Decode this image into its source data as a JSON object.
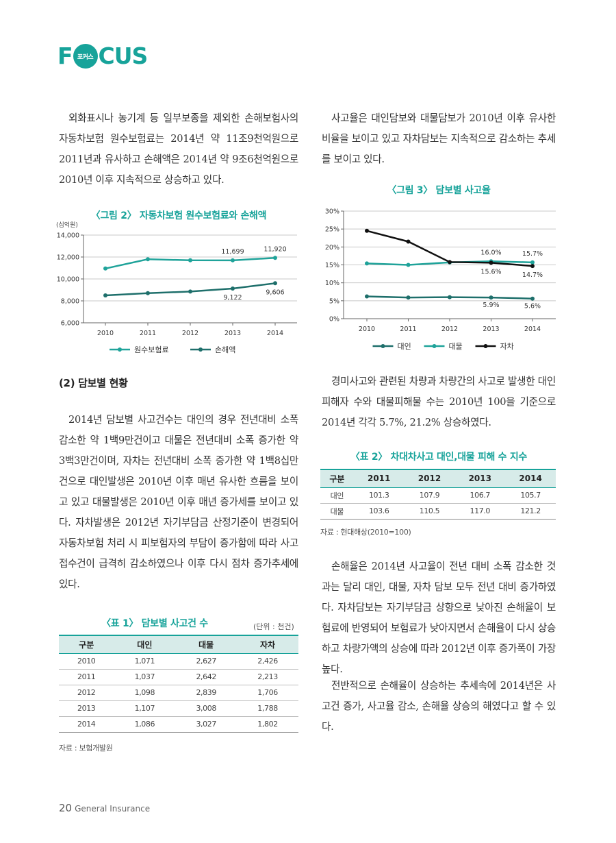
{
  "header": {
    "logo_left": "F",
    "logo_inner": "포커스",
    "logo_right": "CUS",
    "brand_color": "#17a39a"
  },
  "left": {
    "para1": "외화표시나 농기계 등 일부보종을 제외한 손해보험사의 자동차보험 원수보험료는 2014년 약 11조9천억원으로 2011년과 유사하고 손해액은 2014년 약 9조6천억원으로 2010년 이후 지속적으로 상승하고 있다.",
    "section_heading": "(2) 담보별 현황",
    "para2": "2014년 담보별 사고건수는 대인의 경우 전년대비 소폭 감소한 약 1백9만건이고 대물은 전년대비 소폭 증가한 약 3백3만건이며, 자차는 전년대비 소폭 증가한 약 1백8십만건으로 대인발생은 2010년 이후 매년 유사한 흐름을 보이고 있고 대물발생은 2010년 이후 매년 증가세를 보이고 있다. 자차발생은 2012년 자기부담금 산정기준이 변경되어 자동차보험 처리 시 피보험자의 부담이 증가함에 따라 사고접수건이 급격히 감소하였으나 이후 다시 점차 증가추세에 있다."
  },
  "right": {
    "para1": "사고율은 대인담보와 대물담보가 2010년 이후 유사한 비율을 보이고 있고 자차담보는 지속적으로 감소하는 추세를 보이고 있다.",
    "para2": "경미사고와 관련된 차량과 차량간의 사고로 발생한 대인피해자 수와 대물피해물 수는 2010년 100을 기준으로 2014년 각각 5.7%, 21.2% 상승하였다.",
    "para3": "손해율은 2014년 사고율이 전년 대비 소폭 감소한 것과는 달리 대인, 대물, 자차 담보 모두 전년 대비 증가하였다. 자차담보는 자기부담금 상향으로 낮아진 손해율이 보험료에 반영되어 보험료가 낮아지면서 손해율이 다시 상승하고 차량가액의 상승에 따라 2012년 이후 증가폭이 가장 높다.",
    "para4": "전반적으로 손해율이 상승하는 추세속에 2014년은 사고건 증가, 사고율 감소, 손해율 상승의 해였다고 할 수 있다."
  },
  "chart_data": [
    {
      "type": "line",
      "title": "〈그림 2〉 자동차보험 원수보험료와 손해액",
      "ylabel": "(십억원)",
      "x": [
        "2010",
        "2011",
        "2012",
        "2013",
        "2014"
      ],
      "ylim": [
        6000,
        14000
      ],
      "yticks": [
        "6,000",
        "8,000",
        "10,000",
        "12,000",
        "14,000"
      ],
      "yticks_values": [
        6000,
        8000,
        10000,
        12000,
        14000
      ],
      "grid": true,
      "legend": "bottom",
      "series": [
        {
          "name": "원수보험료",
          "values": [
            10950,
            11800,
            11700,
            11699,
            11920
          ],
          "color": "#1fa39a",
          "labels": [
            "",
            "",
            "",
            "11,699",
            "11,920"
          ]
        },
        {
          "name": "손해액",
          "values": [
            8500,
            8700,
            8850,
            9122,
            9606
          ],
          "color": "#1e6f6b",
          "labels": [
            "",
            "",
            "",
            "9,122",
            "9,606"
          ]
        }
      ]
    },
    {
      "type": "line",
      "title": "〈그림 3〉 담보별 사고율",
      "x": [
        "2010",
        "2011",
        "2012",
        "2013",
        "2014"
      ],
      "ylim": [
        0,
        30
      ],
      "yticks": [
        "0%",
        "5%",
        "10%",
        "15%",
        "20%",
        "25%",
        "30%"
      ],
      "yticks_values": [
        0,
        5,
        10,
        15,
        20,
        25,
        30
      ],
      "grid": true,
      "legend": "bottom",
      "series": [
        {
          "name": "대인",
          "values": [
            6.2,
            5.9,
            6.0,
            5.9,
            5.6
          ],
          "color": "#1e6f6b",
          "labels": [
            "",
            "",
            "",
            "5.9%",
            "5.6%"
          ]
        },
        {
          "name": "대물",
          "values": [
            15.4,
            15.0,
            15.7,
            16.0,
            15.7
          ],
          "color": "#1fa39a",
          "labels": [
            "",
            "",
            "",
            "16.0%",
            "15.7%"
          ]
        },
        {
          "name": "자차",
          "values": [
            24.5,
            21.5,
            15.8,
            15.6,
            14.7
          ],
          "color": "#111111",
          "labels": [
            "",
            "",
            "",
            "15.6%",
            "14.7%"
          ]
        }
      ]
    },
    {
      "type": "table",
      "title": "〈표 1〉 담보별 사고건 수",
      "unit": "(단위 : 천건)",
      "headers": [
        "구분",
        "대인",
        "대물",
        "자차"
      ],
      "rows": [
        [
          "2010",
          "1,071",
          "2,627",
          "2,426"
        ],
        [
          "2011",
          "1,037",
          "2,642",
          "2,213"
        ],
        [
          "2012",
          "1,098",
          "2,839",
          "1,706"
        ],
        [
          "2013",
          "1,107",
          "3,008",
          "1,788"
        ],
        [
          "2014",
          "1,086",
          "3,027",
          "1,802"
        ]
      ],
      "source": "자료 : 보험개발원"
    },
    {
      "type": "table",
      "title": "〈표 2〉 차대차사고 대인,대물 피해 수 지수",
      "headers": [
        "구분",
        "2011",
        "2012",
        "2013",
        "2014"
      ],
      "rows": [
        [
          "대인",
          "101.3",
          "107.9",
          "106.7",
          "105.7"
        ],
        [
          "대물",
          "103.6",
          "110.5",
          "117.0",
          "121.2"
        ]
      ],
      "source": "자료 : 현대해상(2010=100)"
    }
  ],
  "footer": {
    "page_number": "20",
    "publication": "General Insurance"
  }
}
